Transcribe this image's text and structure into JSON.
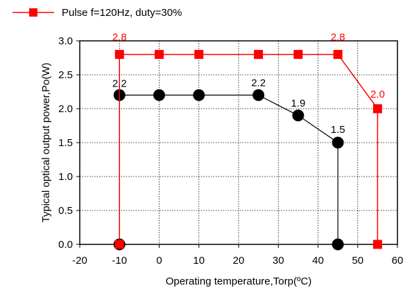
{
  "chart_data": {
    "type": "line",
    "title": "",
    "xlabel": "Operating temperature,Torp(ºC)",
    "ylabel": "Typical optical output power,Po(W)",
    "xlim": [
      -20,
      60
    ],
    "ylim": [
      0.0,
      3.0
    ],
    "xticks": [
      "-20",
      "-10",
      "0",
      "10",
      "20",
      "30",
      "40",
      "50",
      "60"
    ],
    "yticks": [
      "0.0",
      "0.5",
      "1.0",
      "1.5",
      "2.0",
      "2.5",
      "3.0"
    ],
    "grid": "dotted",
    "legend_position": "top-left, above plot",
    "series": [
      {
        "name": "Pulse f=120Hz, duty=30%",
        "color": "#ff0000",
        "marker": "square",
        "x": [
          -10,
          -10,
          0,
          10,
          25,
          35,
          45,
          55,
          55
        ],
        "y": [
          0.0,
          2.8,
          2.8,
          2.8,
          2.8,
          2.8,
          2.8,
          2.0,
          0.0
        ]
      },
      {
        "name": "",
        "color": "#000000",
        "marker": "circle",
        "x": [
          -10,
          -10,
          0,
          10,
          25,
          35,
          45,
          45
        ],
        "y": [
          0.0,
          2.2,
          2.2,
          2.2,
          2.2,
          1.9,
          1.5,
          0.0
        ]
      }
    ],
    "annotations": [
      {
        "text": "2.8",
        "x": -10,
        "y": 2.8,
        "color": "#ff0000"
      },
      {
        "text": "2.8",
        "x": 45,
        "y": 2.8,
        "color": "#ff0000"
      },
      {
        "text": "2.0",
        "x": 55,
        "y": 2.0,
        "color": "#ff0000"
      },
      {
        "text": "2.2",
        "x": -10,
        "y": 2.2,
        "color": "#000000"
      },
      {
        "text": "2.2",
        "x": 25,
        "y": 2.2,
        "color": "#000000"
      },
      {
        "text": "1.9",
        "x": 35,
        "y": 1.9,
        "color": "#000000"
      },
      {
        "text": "1.5",
        "x": 45,
        "y": 1.5,
        "color": "#000000"
      }
    ]
  }
}
